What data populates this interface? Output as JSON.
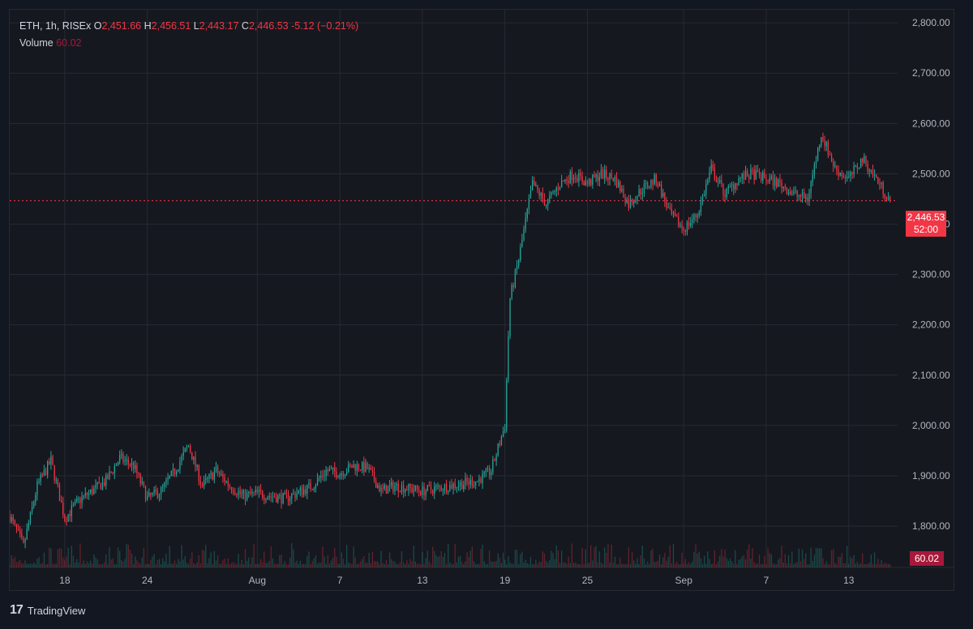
{
  "legend": {
    "symbol": "ETH, 1h, RISEx",
    "open_key": "O",
    "open": "2,451.66",
    "high_key": "H",
    "high": "2,456.51",
    "low_key": "L",
    "low": "2,443.17",
    "close_key": "C",
    "close": "2,446.53",
    "change": "-5.12 (−0.21%)",
    "volume_label": "Volume",
    "volume_value": "60.02"
  },
  "price_badge": {
    "price": "2,446.53",
    "countdown": "52:00"
  },
  "volume_badge": "60.02",
  "brand": {
    "name": "TradingView",
    "logo_text": "17"
  },
  "colors": {
    "up": "#26a69a",
    "down": "#f23645",
    "background": "#16181f",
    "grid": "#262a33"
  },
  "chart_data": {
    "type": "candlestick",
    "symbol": "ETH",
    "interval": "1h",
    "exchange": "RISEx",
    "y_axis": {
      "ticks": [
        1800,
        1900,
        2000,
        2100,
        2200,
        2300,
        2400,
        2500,
        2600,
        2700,
        2800
      ],
      "tick_labels": [
        "1,800.00",
        "1,900.00",
        "2,000.00",
        "2,100.00",
        "2,200.00",
        "2,300.00",
        "2,400.00",
        "2,500.00",
        "2,600.00",
        "2,700.00",
        "2,800.00"
      ],
      "range": [
        1718,
        2826
      ]
    },
    "x_axis": {
      "tick_labels": [
        "18",
        "24",
        "Aug",
        "7",
        "13",
        "19",
        "25",
        "Sep",
        "7",
        "13"
      ],
      "tick_dates": [
        "Jul 18",
        "Jul 24",
        "Aug 1",
        "Aug 7",
        "Aug 13",
        "Aug 19",
        "Aug 25",
        "Sep 1",
        "Sep 7",
        "Sep 13"
      ],
      "range": [
        "Jul 14",
        "Sep 16"
      ]
    },
    "last_price": 2446.53,
    "price_keypoints": [
      [
        "Jul 14",
        1820
      ],
      [
        "Jul 15",
        1760
      ],
      [
        "Jul 16",
        1880
      ],
      [
        "Jul 17",
        1930
      ],
      [
        "Jul 18",
        1815
      ],
      [
        "Jul 19",
        1850
      ],
      [
        "Jul 21",
        1890
      ],
      [
        "Jul 22",
        1935
      ],
      [
        "Jul 23",
        1920
      ],
      [
        "Jul 24",
        1855
      ],
      [
        "Jul 25",
        1870
      ],
      [
        "Jul 26",
        1910
      ],
      [
        "Jul 27",
        1960
      ],
      [
        "Jul 28",
        1880
      ],
      [
        "Jul 29",
        1910
      ],
      [
        "Jul 30",
        1880
      ],
      [
        "Jul 31",
        1860
      ],
      [
        "Aug 1",
        1865
      ],
      [
        "Aug 2",
        1860
      ],
      [
        "Aug 3",
        1855
      ],
      [
        "Aug 5",
        1880
      ],
      [
        "Aug 6",
        1910
      ],
      [
        "Aug 7",
        1905
      ],
      [
        "Aug 8",
        1920
      ],
      [
        "Aug 9",
        1915
      ],
      [
        "Aug 10",
        1870
      ],
      [
        "Aug 11",
        1880
      ],
      [
        "Aug 13",
        1870
      ],
      [
        "Aug 15",
        1880
      ],
      [
        "Aug 17",
        1890
      ],
      [
        "Aug 18",
        1910
      ],
      [
        "Aug 19",
        2000
      ],
      [
        "Aug 19",
        2250
      ],
      [
        "Aug 20",
        2330
      ],
      [
        "Aug 21",
        2480
      ],
      [
        "Aug 22",
        2440
      ],
      [
        "Aug 23",
        2480
      ],
      [
        "Aug 24",
        2500
      ],
      [
        "Aug 25",
        2480
      ],
      [
        "Aug 26",
        2500
      ],
      [
        "Aug 27",
        2490
      ],
      [
        "Aug 28",
        2440
      ],
      [
        "Aug 29",
        2470
      ],
      [
        "Aug 30",
        2490
      ],
      [
        "Aug 31",
        2420
      ],
      [
        "Sep 1",
        2390
      ],
      [
        "Sep 2",
        2420
      ],
      [
        "Sep 3",
        2510
      ],
      [
        "Sep 4",
        2460
      ],
      [
        "Sep 5",
        2490
      ],
      [
        "Sep 6",
        2500
      ],
      [
        "Sep 7",
        2490
      ],
      [
        "Sep 8",
        2480
      ],
      [
        "Sep 9",
        2460
      ],
      [
        "Sep 10",
        2450
      ],
      [
        "Sep 11",
        2580
      ],
      [
        "Sep 12",
        2510
      ],
      [
        "Sep 13",
        2490
      ],
      [
        "Sep 14",
        2530
      ],
      [
        "Sep 15",
        2490
      ],
      [
        "Sep 16",
        2446.53
      ]
    ],
    "volume_last": 60.02
  }
}
